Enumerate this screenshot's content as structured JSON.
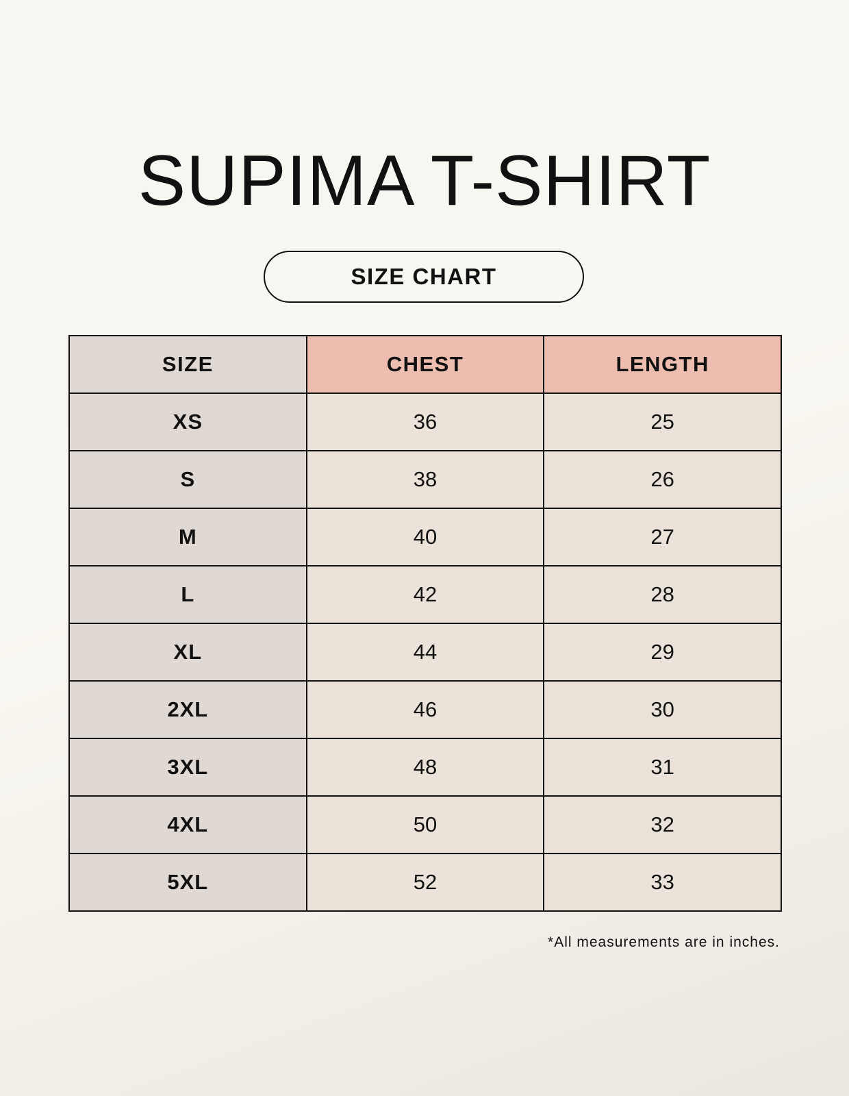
{
  "title": "SUPIMA T-SHIRT",
  "subtitle": "SIZE CHART",
  "table": {
    "headers": [
      "SIZE",
      "CHEST",
      "LENGTH"
    ],
    "rows": [
      [
        "XS",
        "36",
        "25"
      ],
      [
        "S",
        "38",
        "26"
      ],
      [
        "M",
        "40",
        "27"
      ],
      [
        "L",
        "42",
        "28"
      ],
      [
        "XL",
        "44",
        "29"
      ],
      [
        "2XL",
        "46",
        "30"
      ],
      [
        "3XL",
        "48",
        "31"
      ],
      [
        "4XL",
        "50",
        "32"
      ],
      [
        "5XL",
        "52",
        "33"
      ]
    ]
  },
  "footnote": "*All measurements are in inches.",
  "colors": {
    "size_column": "#e0d9d3",
    "measure_header": "#edbdaf",
    "value_cells": "#ebe3d9"
  }
}
